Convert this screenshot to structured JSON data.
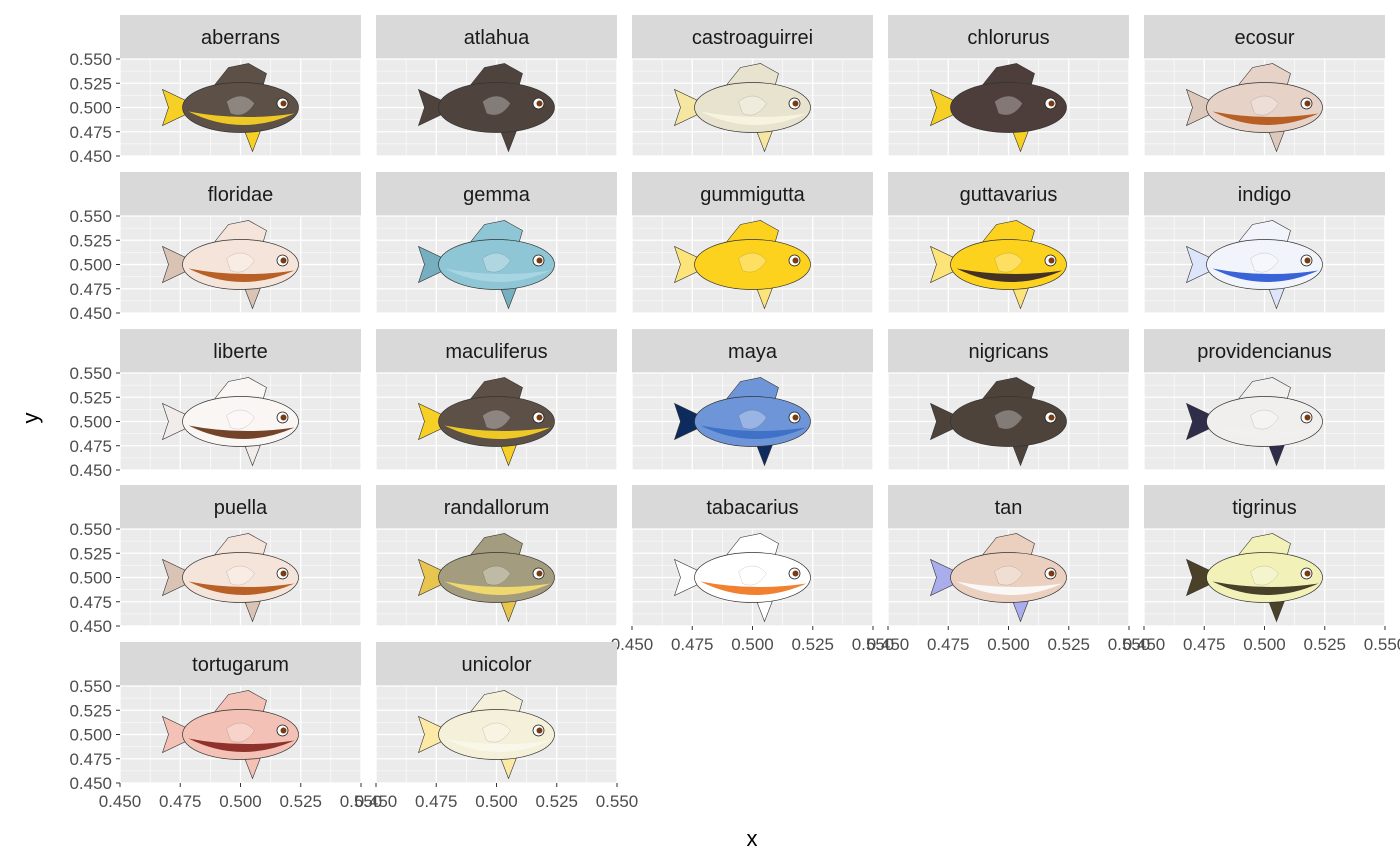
{
  "chart_data": {
    "type": "scatter",
    "title": "",
    "xlabel": "x",
    "ylabel": "y",
    "xlim": [
      0.45,
      0.55
    ],
    "ylim": [
      0.45,
      0.55
    ],
    "x_ticks": [
      "0.450",
      "0.475",
      "0.500",
      "0.525",
      "0.550"
    ],
    "y_ticks": [
      "0.450",
      "0.475",
      "0.500",
      "0.525",
      "0.550"
    ],
    "grid": true,
    "panel_background": "#EBEBEB",
    "strip_background": "#D9D9D9",
    "facets": [
      {
        "label": "aberrans",
        "x": 0.5,
        "y": 0.5,
        "marker": "fish-icon",
        "colors": {
          "body": "#5C5047",
          "belly": "#F6D024",
          "fin": "#F6D024"
        }
      },
      {
        "label": "atlahua",
        "x": 0.5,
        "y": 0.5,
        "marker": "fish-icon",
        "colors": {
          "body": "#4F443D",
          "belly": "#4F443D",
          "fin": "#4F443D"
        }
      },
      {
        "label": "castroaguirrei",
        "x": 0.5,
        "y": 0.5,
        "marker": "fish-icon",
        "colors": {
          "body": "#E8E3CF",
          "belly": "#F7F3DE",
          "fin": "#F5E6A1"
        }
      },
      {
        "label": "chlorurus",
        "x": 0.5,
        "y": 0.5,
        "marker": "fish-icon",
        "colors": {
          "body": "#4D3D3B",
          "belly": "#4D3D3B",
          "fin": "#F6D024"
        }
      },
      {
        "label": "ecosur",
        "x": 0.5,
        "y": 0.5,
        "marker": "fish-icon",
        "colors": {
          "body": "#E6D2C6",
          "belly": "#B5581C",
          "fin": "#DCC9BC"
        }
      },
      {
        "label": "floridae",
        "x": 0.5,
        "y": 0.5,
        "marker": "fish-icon",
        "colors": {
          "body": "#F5E4DA",
          "belly": "#B5581C",
          "fin": "#D9C3B5"
        }
      },
      {
        "label": "gemma",
        "x": 0.5,
        "y": 0.5,
        "marker": "fish-icon",
        "colors": {
          "body": "#8EC6D5",
          "belly": "#A9D6E2",
          "fin": "#76AFBF"
        }
      },
      {
        "label": "gummigutta",
        "x": 0.5,
        "y": 0.5,
        "marker": "fish-icon",
        "colors": {
          "body": "#FDD21E",
          "belly": "#FDD21E",
          "fin": "#FDE47A"
        }
      },
      {
        "label": "guttavarius",
        "x": 0.5,
        "y": 0.5,
        "marker": "fish-icon",
        "colors": {
          "body": "#FDD21E",
          "belly": "#3A2A25",
          "fin": "#FDE47A"
        }
      },
      {
        "label": "indigo",
        "x": 0.5,
        "y": 0.5,
        "marker": "fish-icon",
        "colors": {
          "body": "#F2F4FC",
          "belly": "#2F5BD6",
          "fin": "#DDE5FB"
        }
      },
      {
        "label": "liberte",
        "x": 0.5,
        "y": 0.5,
        "marker": "fish-icon",
        "colors": {
          "body": "#FAF6F4",
          "belly": "#6B3A1F",
          "fin": "#F1ECEA"
        }
      },
      {
        "label": "maculiferus",
        "x": 0.5,
        "y": 0.5,
        "marker": "fish-icon",
        "colors": {
          "body": "#5C5047",
          "belly": "#F6D024",
          "fin": "#F6D024"
        }
      },
      {
        "label": "maya",
        "x": 0.5,
        "y": 0.5,
        "marker": "fish-icon",
        "colors": {
          "body": "#6E95D8",
          "belly": "#3C6FC6",
          "fin": "#0E2B5E"
        }
      },
      {
        "label": "nigricans",
        "x": 0.5,
        "y": 0.5,
        "marker": "fish-icon",
        "colors": {
          "body": "#4E433B",
          "belly": "#4E433B",
          "fin": "#4E433B"
        }
      },
      {
        "label": "providencianus",
        "x": 0.5,
        "y": 0.5,
        "marker": "fish-icon",
        "colors": {
          "body": "#F1EFEE",
          "belly": "#F1EFEE",
          "fin": "#2E2D4A"
        }
      },
      {
        "label": "puella",
        "x": 0.5,
        "y": 0.5,
        "marker": "fish-icon",
        "colors": {
          "body": "#F5E4DA",
          "belly": "#B5581C",
          "fin": "#D9C3B5"
        }
      },
      {
        "label": "randallorum",
        "x": 0.5,
        "y": 0.5,
        "marker": "fish-icon",
        "colors": {
          "body": "#A49C7E",
          "belly": "#F3DB6D",
          "fin": "#E7C54E"
        }
      },
      {
        "label": "tabacarius",
        "x": 0.5,
        "y": 0.5,
        "marker": "fish-icon",
        "colors": {
          "body": "#FFFFFF",
          "belly": "#F07A26",
          "fin": "#FFFFFF"
        }
      },
      {
        "label": "tan",
        "x": 0.5,
        "y": 0.5,
        "marker": "fish-icon",
        "colors": {
          "body": "#EBD0BF",
          "belly": "#FAFAFA",
          "fin": "#A9ADEB"
        }
      },
      {
        "label": "tigrinus",
        "x": 0.5,
        "y": 0.5,
        "marker": "fish-icon",
        "colors": {
          "body": "#F2F1B8",
          "belly": "#3F3621",
          "fin": "#4B4129"
        }
      },
      {
        "label": "tortugarum",
        "x": 0.5,
        "y": 0.5,
        "marker": "fish-icon",
        "colors": {
          "body": "#F3C1B5",
          "belly": "#8A2A25",
          "fin": "#F3C1B5"
        }
      },
      {
        "label": "unicolor",
        "x": 0.5,
        "y": 0.5,
        "marker": "fish-icon",
        "colors": {
          "body": "#F4F0D9",
          "belly": "#F9F7EA",
          "fin": "#FBE9A5"
        }
      }
    ]
  }
}
